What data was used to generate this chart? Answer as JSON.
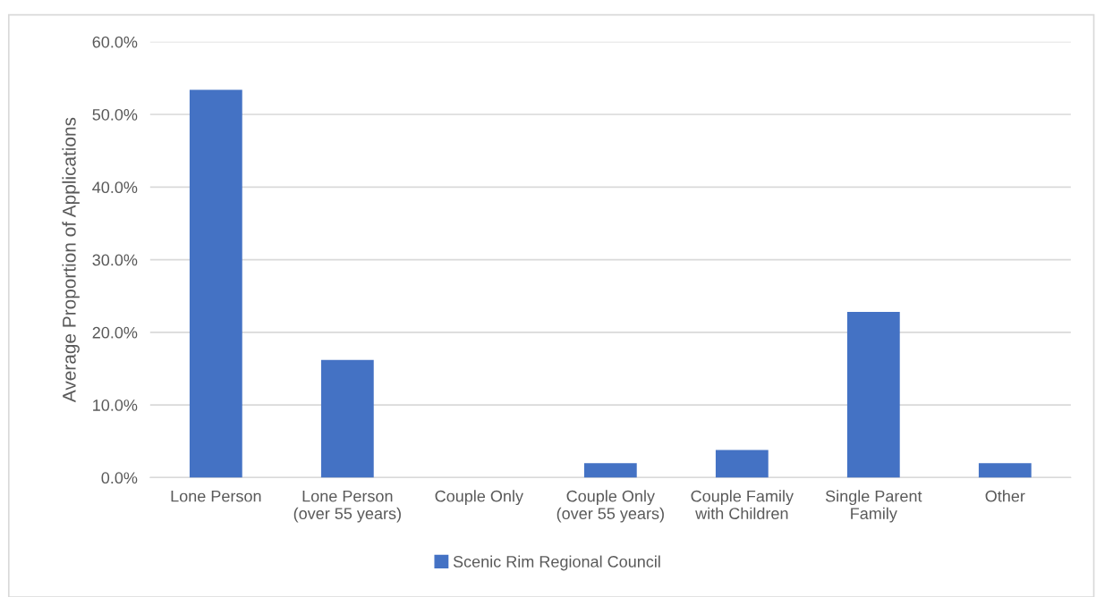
{
  "chart_data": {
    "type": "bar",
    "ylabel": "Average Proportion of Applications",
    "categories": [
      "Lone Person",
      "Lone Person\n(over 55 years)",
      "Couple Only",
      "Couple Only\n(over 55 years)",
      "Couple Family\nwith Children",
      "Single Parent\nFamily",
      "Other"
    ],
    "series": [
      {
        "name": "Scenic Rim Regional Council",
        "color": "#4472c4",
        "values": [
          53.4,
          16.2,
          0,
          2.0,
          3.8,
          22.8,
          2.0
        ]
      }
    ],
    "ylim": [
      0,
      60
    ],
    "yticks": [
      {
        "value": 0,
        "label": "0.0%"
      },
      {
        "value": 10,
        "label": "10.0%"
      },
      {
        "value": 20,
        "label": "20.0%"
      },
      {
        "value": 30,
        "label": "30.0%"
      },
      {
        "value": 40,
        "label": "40.0%"
      },
      {
        "value": 50,
        "label": "50.0%"
      },
      {
        "value": 60,
        "label": "60.0%"
      }
    ],
    "grid": "y",
    "legend": "bottom"
  }
}
